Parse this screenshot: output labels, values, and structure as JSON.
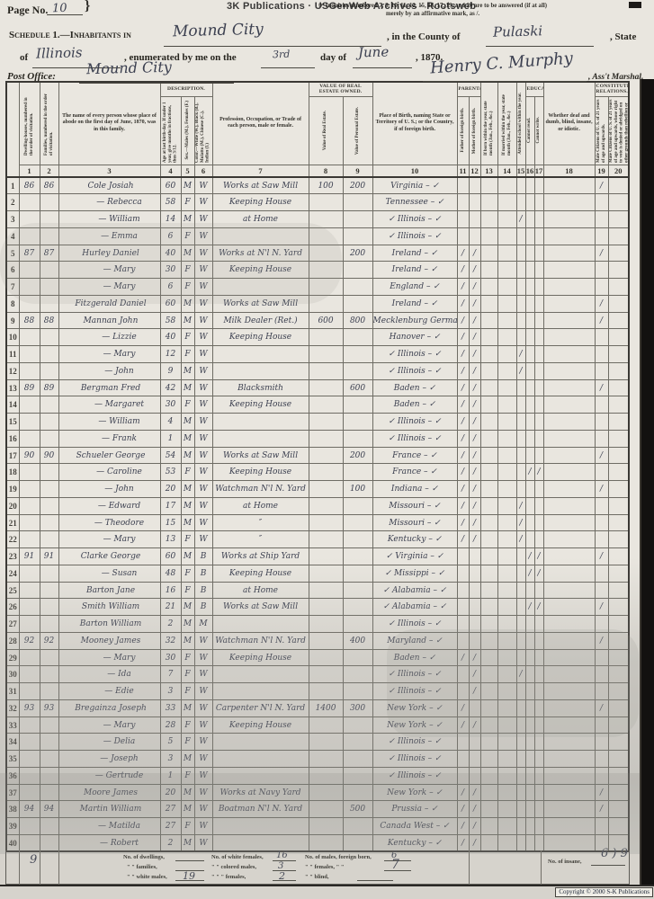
{
  "page": {
    "page_label": "Page No.",
    "page_no": "10",
    "brace": "}",
    "note1": "☞ Inquiries numbered 7, 8, 10, 11, 12, 15, 16, 17, 19, and 20 are to be answered (if at all)",
    "note2": "merely by an affirmative mark, as /.",
    "watermark": "3K Publications · USGenWeb Archives · Rootsweb",
    "schedule_prefix": "Schedule 1.—Inhabitants in",
    "town": "Mound City",
    "county_label": ", in the County of",
    "county": "Pulaski",
    "state_suffix": ", State",
    "of_label": "of",
    "state": "Illinois",
    "enum_label": ", enumerated by me on the",
    "day": "3rd",
    "dayof_label": "day of",
    "month": "June",
    "year_label": ", 1870.",
    "po_label": "Post Office:",
    "post_office": "Mound City",
    "signature": "Henry C. Murphy",
    "marshal_label": ", Ass't Marshal.",
    "copyright": "Copyright © 2000 S-K Publications"
  },
  "table": {
    "groups": {
      "description": "Description.",
      "value": "Value of Real Estate Owned.",
      "parentage": "Parentage.",
      "education": "Education.",
      "constitutional": "Constitutional Relations."
    },
    "columns": [
      {
        "n": "1",
        "label": "Dwelling-houses, numbered in the order of visitation."
      },
      {
        "n": "2",
        "label": "Families, numbered in the order of visitation."
      },
      {
        "n": "3",
        "label": "The name of every person whose place of abode on the first day of June, 1870, was in this family."
      },
      {
        "n": "4",
        "label": "Age at last birth-day. If under 1 year, give months in fractions, thus 3/12."
      },
      {
        "n": "5",
        "label": "Sex.—Males (M.), Females (F.)"
      },
      {
        "n": "6",
        "label": "Color.—White (W.), Black (B.), Mulatto (M.), Chinese (C.), Indian (I.)"
      },
      {
        "n": "7",
        "label": "Profession, Occupation, or Trade of each person, male or female."
      },
      {
        "n": "8",
        "label": "Value of Real Estate."
      },
      {
        "n": "9",
        "label": "Value of Personal Estate."
      },
      {
        "n": "10",
        "label": "Place of Birth, naming State or Territory of U. S.; or the Country, if of foreign birth."
      },
      {
        "n": "11",
        "label": "Father of foreign birth."
      },
      {
        "n": "12",
        "label": "Mother of foreign birth."
      },
      {
        "n": "13",
        "label": "If born within the year, state month (Jan., Feb., &c.)"
      },
      {
        "n": "14",
        "label": "If married within the year, state month (Jan., Feb., &c.)"
      },
      {
        "n": "15",
        "label": "Attended school within the year."
      },
      {
        "n": "16",
        "label": "Cannot read."
      },
      {
        "n": "17",
        "label": "Cannot write."
      },
      {
        "n": "18",
        "label": "Whether deaf and dumb, blind, insane, or idiotic."
      },
      {
        "n": "19",
        "label": "Male Citizens of U. S. of 21 years of age and upwards."
      },
      {
        "n": "20",
        "label": "Male Citizens of U. S. of 21 years of age and upwards, whose right to vote is denied or abridged on other grounds than rebellion or other crime."
      }
    ],
    "rows": [
      [
        "86",
        "86",
        "Cole Josiah",
        "60",
        "M",
        "W",
        "Works at Saw Mill",
        "100",
        "200",
        "Virginia – ✓",
        "",
        "",
        "",
        "",
        "",
        "",
        "",
        "",
        "/",
        ""
      ],
      [
        "",
        "",
        "— Rebecca",
        "58",
        "F",
        "W",
        "Keeping House",
        "",
        "",
        "Tennessee – ✓",
        "",
        "",
        "",
        "",
        "",
        "",
        "",
        "",
        "",
        ""
      ],
      [
        "",
        "",
        "— William",
        "14",
        "M",
        "W",
        "at Home",
        "",
        "",
        "✓ Illinois – ✓",
        "",
        "",
        "",
        "",
        "/",
        "",
        "",
        "",
        "",
        ""
      ],
      [
        "",
        "",
        "— Emma",
        "6",
        "F",
        "W",
        "",
        "",
        "",
        "✓ Illinois – ✓",
        "",
        "",
        "",
        "",
        "",
        "",
        "",
        "",
        "",
        ""
      ],
      [
        "87",
        "87",
        "Hurley Daniel",
        "40",
        "M",
        "W",
        "Works at N'l N. Yard",
        "",
        "200",
        "Ireland – ✓",
        "/",
        "/",
        "",
        "",
        "",
        "",
        "",
        "",
        "/",
        ""
      ],
      [
        "",
        "",
        "— Mary",
        "30",
        "F",
        "W",
        "Keeping House",
        "",
        "",
        "Ireland – ✓",
        "/",
        "/",
        "",
        "",
        "",
        "",
        "",
        "",
        "",
        ""
      ],
      [
        "",
        "",
        "— Mary",
        "6",
        "F",
        "W",
        "",
        "",
        "",
        "England – ✓",
        "/",
        "/",
        "",
        "",
        "",
        "",
        "",
        "",
        "",
        ""
      ],
      [
        "",
        "",
        "Fitzgerald Daniel",
        "60",
        "M",
        "W",
        "Works at Saw Mill",
        "",
        "",
        "Ireland – ✓",
        "/",
        "/",
        "",
        "",
        "",
        "",
        "",
        "",
        "/",
        ""
      ],
      [
        "88",
        "88",
        "Mannan John",
        "58",
        "M",
        "W",
        "Milk Dealer (Ret.)",
        "600",
        "800",
        "Mecklenburg Germany ✓",
        "/",
        "/",
        "",
        "",
        "",
        "",
        "",
        "",
        "/",
        ""
      ],
      [
        "",
        "",
        "— Lizzie",
        "40",
        "F",
        "W",
        "Keeping House",
        "",
        "",
        "Hanover – ✓",
        "/",
        "/",
        "",
        "",
        "",
        "",
        "",
        "",
        "",
        ""
      ],
      [
        "",
        "",
        "— Mary",
        "12",
        "F",
        "W",
        "",
        "",
        "",
        "✓ Illinois – ✓",
        "/",
        "/",
        "",
        "",
        "/",
        "",
        "",
        "",
        "",
        ""
      ],
      [
        "",
        "",
        "— John",
        "9",
        "M",
        "W",
        "",
        "",
        "",
        "✓ Illinois – ✓",
        "/",
        "/",
        "",
        "",
        "/",
        "",
        "",
        "",
        "",
        ""
      ],
      [
        "89",
        "89",
        "Bergman Fred",
        "42",
        "M",
        "W",
        "Blacksmith",
        "",
        "600",
        "Baden – ✓",
        "/",
        "/",
        "",
        "",
        "",
        "",
        "",
        "",
        "/",
        ""
      ],
      [
        "",
        "",
        "— Margaret",
        "30",
        "F",
        "W",
        "Keeping House",
        "",
        "",
        "Baden – ✓",
        "/",
        "/",
        "",
        "",
        "",
        "",
        "",
        "",
        "",
        ""
      ],
      [
        "",
        "",
        "— William",
        "4",
        "M",
        "W",
        "",
        "",
        "",
        "✓ Illinois – ✓",
        "/",
        "/",
        "",
        "",
        "",
        "",
        "",
        "",
        "",
        ""
      ],
      [
        "",
        "",
        "— Frank",
        "1",
        "M",
        "W",
        "",
        "",
        "",
        "✓ Illinois – ✓",
        "/",
        "/",
        "",
        "",
        "",
        "",
        "",
        "",
        "",
        ""
      ],
      [
        "90",
        "90",
        "Schueler George",
        "54",
        "M",
        "W",
        "Works at Saw Mill",
        "",
        "200",
        "France – ✓",
        "/",
        "/",
        "",
        "",
        "",
        "",
        "",
        "",
        "/",
        ""
      ],
      [
        "",
        "",
        "— Caroline",
        "53",
        "F",
        "W",
        "Keeping House",
        "",
        "",
        "France – ✓",
        "/",
        "/",
        "",
        "",
        "",
        "/",
        "/",
        "",
        "",
        ""
      ],
      [
        "",
        "",
        "— John",
        "20",
        "M",
        "W",
        "Watchman N'l N. Yard",
        "",
        "100",
        "Indiana – ✓",
        "/",
        "/",
        "",
        "",
        "",
        "",
        "",
        "",
        "/",
        ""
      ],
      [
        "",
        "",
        "— Edward",
        "17",
        "M",
        "W",
        "at Home",
        "",
        "",
        "Missouri – ✓",
        "/",
        "/",
        "",
        "",
        "/",
        "",
        "",
        "",
        "",
        ""
      ],
      [
        "",
        "",
        "— Theodore",
        "15",
        "M",
        "W",
        "″",
        "",
        "",
        "Missouri – ✓",
        "/",
        "/",
        "",
        "",
        "/",
        "",
        "",
        "",
        "",
        ""
      ],
      [
        "",
        "",
        "— Mary",
        "13",
        "F",
        "W",
        "″",
        "",
        "",
        "Kentucky – ✓",
        "/",
        "/",
        "",
        "",
        "/",
        "",
        "",
        "",
        "",
        ""
      ],
      [
        "91",
        "91",
        "Clarke George",
        "60",
        "M",
        "B",
        "Works at Ship Yard",
        "",
        "",
        "✓ Virginia – ✓",
        "",
        "",
        "",
        "",
        "",
        "/",
        "/",
        "",
        "/",
        ""
      ],
      [
        "",
        "",
        "— Susan",
        "48",
        "F",
        "B",
        "Keeping House",
        "",
        "",
        "✓ Missippi – ✓",
        "",
        "",
        "",
        "",
        "",
        "/",
        "/",
        "",
        "",
        ""
      ],
      [
        "",
        "",
        "Barton Jane",
        "16",
        "F",
        "B",
        "at Home",
        "",
        "",
        "✓ Alabamia – ✓",
        "",
        "",
        "",
        "",
        "",
        "",
        "",
        "",
        "",
        ""
      ],
      [
        "",
        "",
        "Smith William",
        "21",
        "M",
        "B",
        "Works at Saw Mill",
        "",
        "",
        "✓ Alabamia – ✓",
        "",
        "",
        "",
        "",
        "",
        "/",
        "/",
        "",
        "/",
        ""
      ],
      [
        "",
        "",
        "Barton William",
        "2",
        "M",
        "M",
        "",
        "",
        "",
        "✓ Illinois – ✓",
        "",
        "",
        "",
        "",
        "",
        "",
        "",
        "",
        "",
        ""
      ],
      [
        "92",
        "92",
        "Mooney James",
        "32",
        "M",
        "W",
        "Watchman N'l N. Yard",
        "",
        "400",
        "Maryland – ✓",
        "",
        "",
        "",
        "",
        "",
        "",
        "",
        "",
        "/",
        ""
      ],
      [
        "",
        "",
        "— Mary",
        "30",
        "F",
        "W",
        "Keeping House",
        "",
        "",
        "Baden – ✓",
        "/",
        "/",
        "",
        "",
        "",
        "",
        "",
        "",
        "",
        ""
      ],
      [
        "",
        "",
        "— Ida",
        "7",
        "F",
        "W",
        "",
        "",
        "",
        "✓ Illinois – ✓",
        "",
        "/",
        "",
        "",
        "/",
        "",
        "",
        "",
        "",
        ""
      ],
      [
        "",
        "",
        "— Edie",
        "3",
        "F",
        "W",
        "",
        "",
        "",
        "✓ Illinois – ✓",
        "",
        "/",
        "",
        "",
        "",
        "",
        "",
        "",
        "",
        ""
      ],
      [
        "93",
        "93",
        "Bregainza Joseph",
        "33",
        "M",
        "W",
        "Carpenter N'l N. Yard",
        "1400",
        "300",
        "New York – ✓",
        "/",
        "",
        "",
        "",
        "",
        "",
        "",
        "",
        "/",
        ""
      ],
      [
        "",
        "",
        "— Mary",
        "28",
        "F",
        "W",
        "Keeping House",
        "",
        "",
        "New York – ✓",
        "/",
        "/",
        "",
        "",
        "",
        "",
        "",
        "",
        "",
        ""
      ],
      [
        "",
        "",
        "— Delia",
        "5",
        "F",
        "W",
        "",
        "",
        "",
        "✓ Illinois – ✓",
        "",
        "",
        "",
        "",
        "",
        "",
        "",
        "",
        "",
        ""
      ],
      [
        "",
        "",
        "— Joseph",
        "3",
        "M",
        "W",
        "",
        "",
        "",
        "✓ Illinois – ✓",
        "",
        "",
        "",
        "",
        "",
        "",
        "",
        "",
        "",
        ""
      ],
      [
        "",
        "",
        "— Gertrude",
        "1",
        "F",
        "W",
        "",
        "",
        "",
        "✓ Illinois – ✓",
        "",
        "",
        "",
        "",
        "",
        "",
        "",
        "",
        "",
        ""
      ],
      [
        "",
        "",
        "Moore James",
        "20",
        "M",
        "W",
        "Works at Navy Yard",
        "",
        "",
        "New York – ✓",
        "/",
        "/",
        "",
        "",
        "",
        "",
        "",
        "",
        "/",
        ""
      ],
      [
        "94",
        "94",
        "Martin William",
        "27",
        "M",
        "W",
        "Boatman N'l N. Yard",
        "",
        "500",
        "Prussia – ✓",
        "/",
        "/",
        "",
        "",
        "",
        "",
        "",
        "",
        "/",
        ""
      ],
      [
        "",
        "",
        "— Matilda",
        "27",
        "F",
        "W",
        "",
        "",
        "",
        "Canada West – ✓",
        "/",
        "/",
        "",
        "",
        "",
        "",
        "",
        "",
        "",
        ""
      ],
      [
        "",
        "",
        "— Robert",
        "2",
        "M",
        "W",
        "",
        "",
        "",
        "Kentucky – ✓",
        "/",
        "/",
        "",
        "",
        "",
        "",
        "",
        "",
        "",
        ""
      ]
    ]
  },
  "footer": {
    "l1a": "No. of dwellings,",
    "l1b": "No. of white females,",
    "v_white_females": "16",
    "l1c": "No. of males, foreign born,",
    "v_males_foreign": "6",
    "l2a": "\"  \"  families,",
    "l2b": "\"  \" colored males,",
    "v_colored_males": "3",
    "l2c": "\"  \"  females,  \"  \"",
    "v_females_foreign": "7",
    "l3a": "\"  \"  white males,",
    "v_white_males": "19",
    "l3b": "\"  \"    \"  females,",
    "v_colored_females": "2",
    "l3c": "\"  \"  blind,",
    "insane_label": "No. of insane,",
    "margin_tally": "9",
    "right_tally": "6 ) 9"
  }
}
